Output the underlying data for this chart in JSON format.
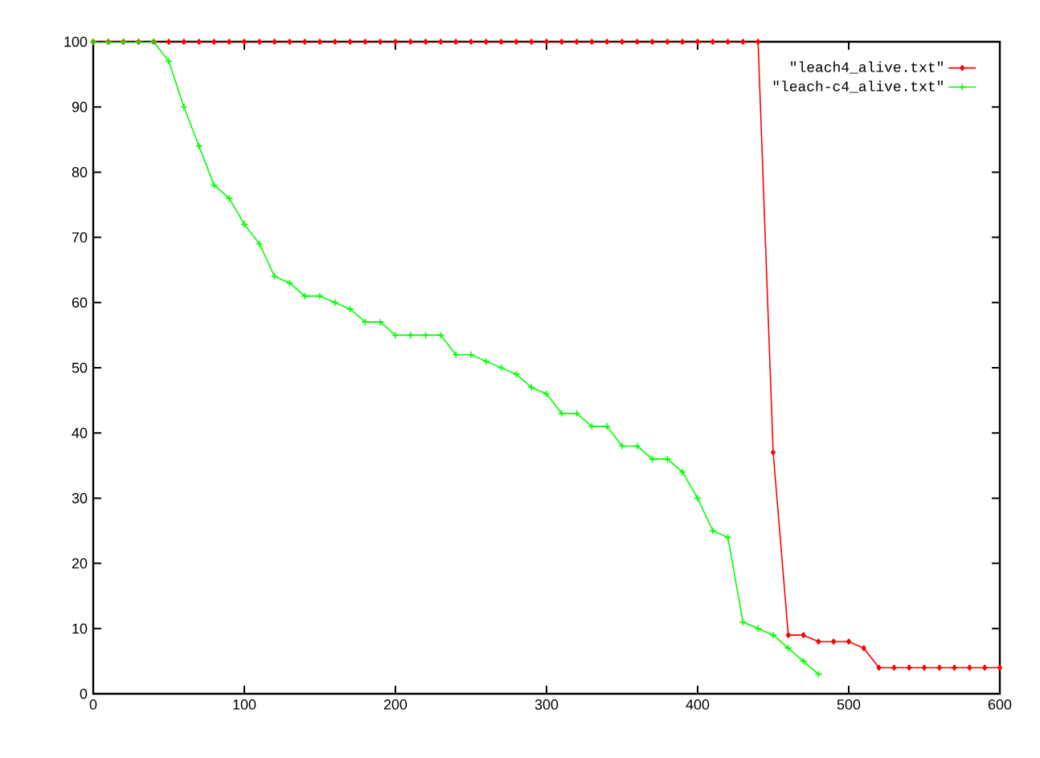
{
  "chart_data": {
    "type": "line",
    "x": [
      0,
      10,
      20,
      30,
      40,
      50,
      60,
      70,
      80,
      90,
      100,
      110,
      120,
      130,
      140,
      150,
      160,
      170,
      180,
      190,
      200,
      210,
      220,
      230,
      240,
      250,
      260,
      270,
      280,
      290,
      300,
      310,
      320,
      330,
      340,
      350,
      360,
      370,
      380,
      390,
      400,
      410,
      420,
      430,
      440,
      450,
      460,
      470,
      480,
      490,
      500,
      510,
      520,
      530,
      540,
      550,
      560,
      570,
      580,
      590,
      600
    ],
    "series": [
      {
        "name": "\"leach4_alive.txt\"",
        "color": "#ff0000",
        "marker": "diamond",
        "values": [
          100,
          100,
          100,
          100,
          100,
          100,
          100,
          100,
          100,
          100,
          100,
          100,
          100,
          100,
          100,
          100,
          100,
          100,
          100,
          100,
          100,
          100,
          100,
          100,
          100,
          100,
          100,
          100,
          100,
          100,
          100,
          100,
          100,
          100,
          100,
          100,
          100,
          100,
          100,
          100,
          100,
          100,
          100,
          100,
          100,
          37,
          9,
          9,
          8,
          8,
          8,
          7,
          4,
          4,
          4,
          4,
          4,
          4,
          4,
          4,
          4
        ]
      },
      {
        "name": "\"leach-c4_alive.txt\"",
        "color": "#00ff00",
        "marker": "cross",
        "x": [
          0,
          10,
          20,
          30,
          40,
          50,
          60,
          70,
          80,
          90,
          100,
          110,
          120,
          130,
          140,
          150,
          160,
          170,
          180,
          190,
          200,
          210,
          220,
          230,
          240,
          250,
          260,
          270,
          280,
          290,
          300,
          310,
          320,
          330,
          340,
          350,
          360,
          370,
          380,
          390,
          400,
          410,
          420,
          430,
          440,
          450,
          460,
          470,
          480
        ],
        "values": [
          100,
          100,
          100,
          100,
          100,
          97,
          90,
          84,
          78,
          76,
          72,
          69,
          64,
          63,
          61,
          61,
          60,
          59,
          57,
          57,
          55,
          55,
          55,
          55,
          52,
          52,
          51,
          50,
          49,
          47,
          46,
          43,
          43,
          41,
          41,
          38,
          38,
          36,
          36,
          34,
          30,
          25,
          24,
          11,
          10,
          9,
          7,
          5,
          3
        ]
      }
    ],
    "xlim": [
      0,
      600
    ],
    "xticks": [
      0,
      100,
      200,
      300,
      400,
      500,
      600
    ],
    "ylim": [
      0,
      100
    ],
    "yticks": [
      0,
      10,
      20,
      30,
      40,
      50,
      60,
      70,
      80,
      90,
      100
    ],
    "grid": false,
    "legend": "top right",
    "line_style": "solid"
  }
}
